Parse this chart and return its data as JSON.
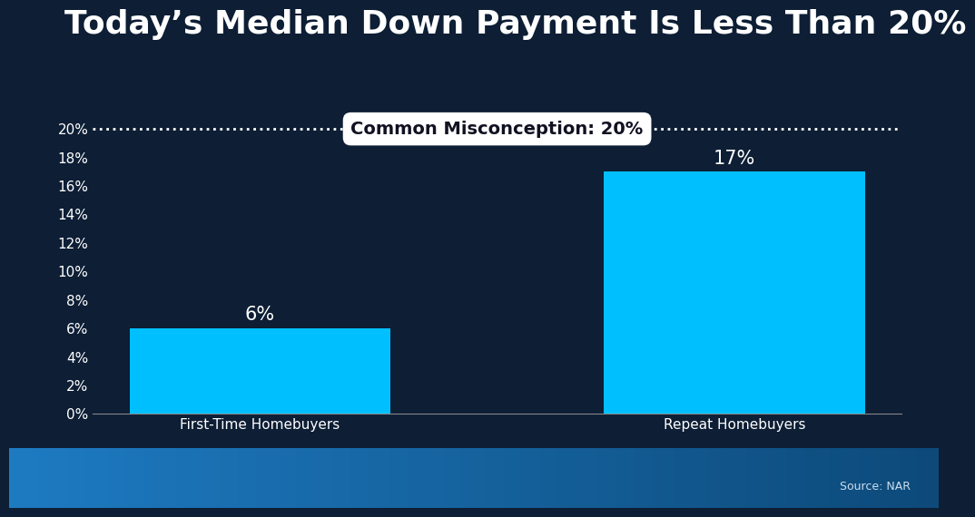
{
  "title": "Today’s Median Down Payment Is Less Than 20%",
  "categories": [
    "First-Time Homebuyers",
    "Repeat Homebuyers"
  ],
  "values": [
    6,
    17
  ],
  "bar_color": "#00BFFF",
  "background_color": "#0D1E35",
  "text_color": "#FFFFFF",
  "tick_color": "#FFFFFF",
  "ylim": [
    0,
    22
  ],
  "yticks": [
    0,
    2,
    4,
    6,
    8,
    10,
    12,
    14,
    16,
    18,
    20
  ],
  "ytick_labels": [
    "0%",
    "2%",
    "4%",
    "6%",
    "8%",
    "10%",
    "12%",
    "14%",
    "16%",
    "18%",
    "20%"
  ],
  "misconception_value": 20,
  "misconception_label": "Common Misconception: 20%",
  "source_text": "Source: NAR",
  "title_fontsize": 26,
  "bar_label_fontsize": 15,
  "tick_fontsize": 11,
  "xlabel_fontsize": 11,
  "dotted_line_color": "#FFFFFF",
  "box_fill_color": "#FFFFFF",
  "box_text_color": "#111122",
  "bottom_band_color_left": "#1E7BC2",
  "bottom_band_color_right": "#0D4A7A"
}
